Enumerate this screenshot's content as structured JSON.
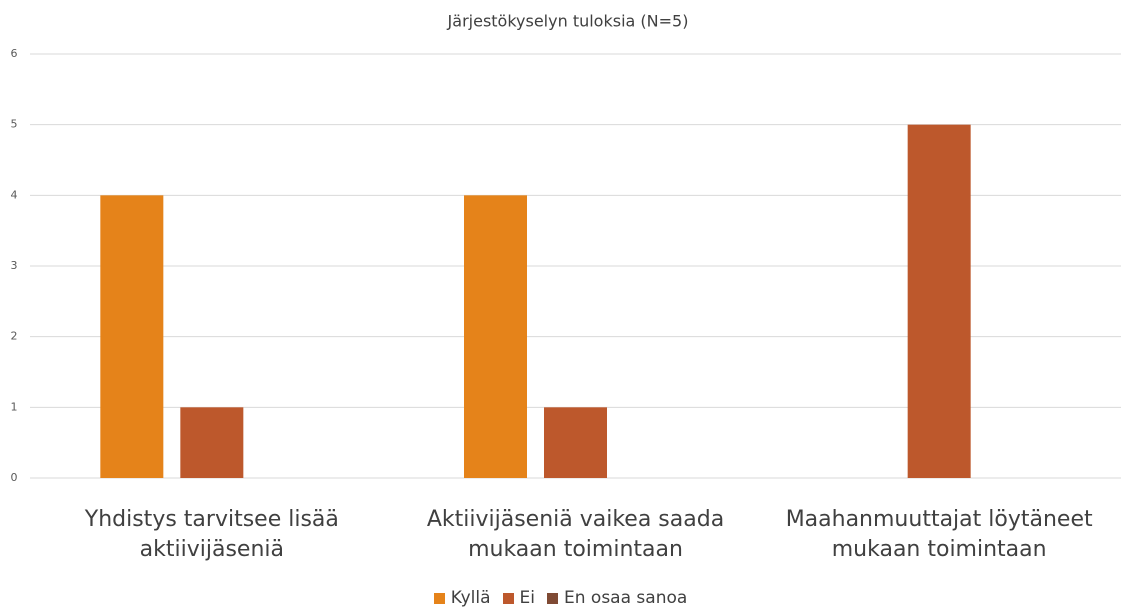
{
  "chart_data": {
    "type": "bar",
    "title": "Järjestökyselyn tuloksia (N=5)",
    "categories": [
      "Yhdistys tarvitsee lisää aktiivijäseniä",
      "Aktiivijäseniä vaikea saada mukaan toimintaan",
      "Maahanmuuttajat löytäneet mukaan toimintaan"
    ],
    "series": [
      {
        "name": "Kyllä",
        "color": "#e5831a",
        "values": [
          4,
          4,
          0
        ]
      },
      {
        "name": "Ei",
        "color": "#bd582c",
        "values": [
          1,
          1,
          5
        ]
      },
      {
        "name": "En osaa sanoa",
        "color": "#7f4a34",
        "values": [
          0,
          0,
          0
        ]
      }
    ],
    "ylim": [
      0,
      6
    ],
    "yticks": [
      0,
      1,
      2,
      3,
      4,
      5,
      6
    ],
    "grid": true,
    "legend": "bottom"
  }
}
